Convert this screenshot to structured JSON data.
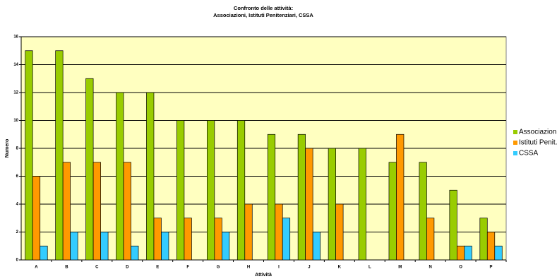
{
  "chart_data": {
    "type": "bar",
    "title": "Confronto delle attività:",
    "subtitle": "Associazioni, Istituti Penitenziari, CSSA",
    "x_label": "Attività",
    "y_label": "Numero",
    "categories": [
      "A",
      "B",
      "C",
      "D",
      "E",
      "F",
      "G",
      "H",
      "I",
      "J",
      "K",
      "L",
      "M",
      "N",
      "O",
      "P"
    ],
    "series": [
      {
        "name": "Associazioni",
        "color": "#99cc00",
        "values": [
          15,
          15,
          13,
          12,
          12,
          10,
          10,
          10,
          9,
          9,
          8,
          8,
          7,
          7,
          5,
          3
        ]
      },
      {
        "name": "Istituti Penit.",
        "color": "#ff9900",
        "values": [
          6,
          7,
          7,
          7,
          3,
          3,
          3,
          4,
          4,
          8,
          4,
          0,
          9,
          3,
          1,
          2
        ]
      },
      {
        "name": "CSSA",
        "color": "#33ccff",
        "values": [
          1,
          2,
          2,
          1,
          2,
          0,
          2,
          0,
          3,
          2,
          0,
          0,
          0,
          0,
          1,
          1
        ]
      }
    ],
    "ylim": [
      0,
      16
    ],
    "yticks": [
      0,
      2,
      4,
      6,
      8,
      10,
      12,
      14,
      16
    ],
    "grid": true,
    "legend": "right"
  }
}
